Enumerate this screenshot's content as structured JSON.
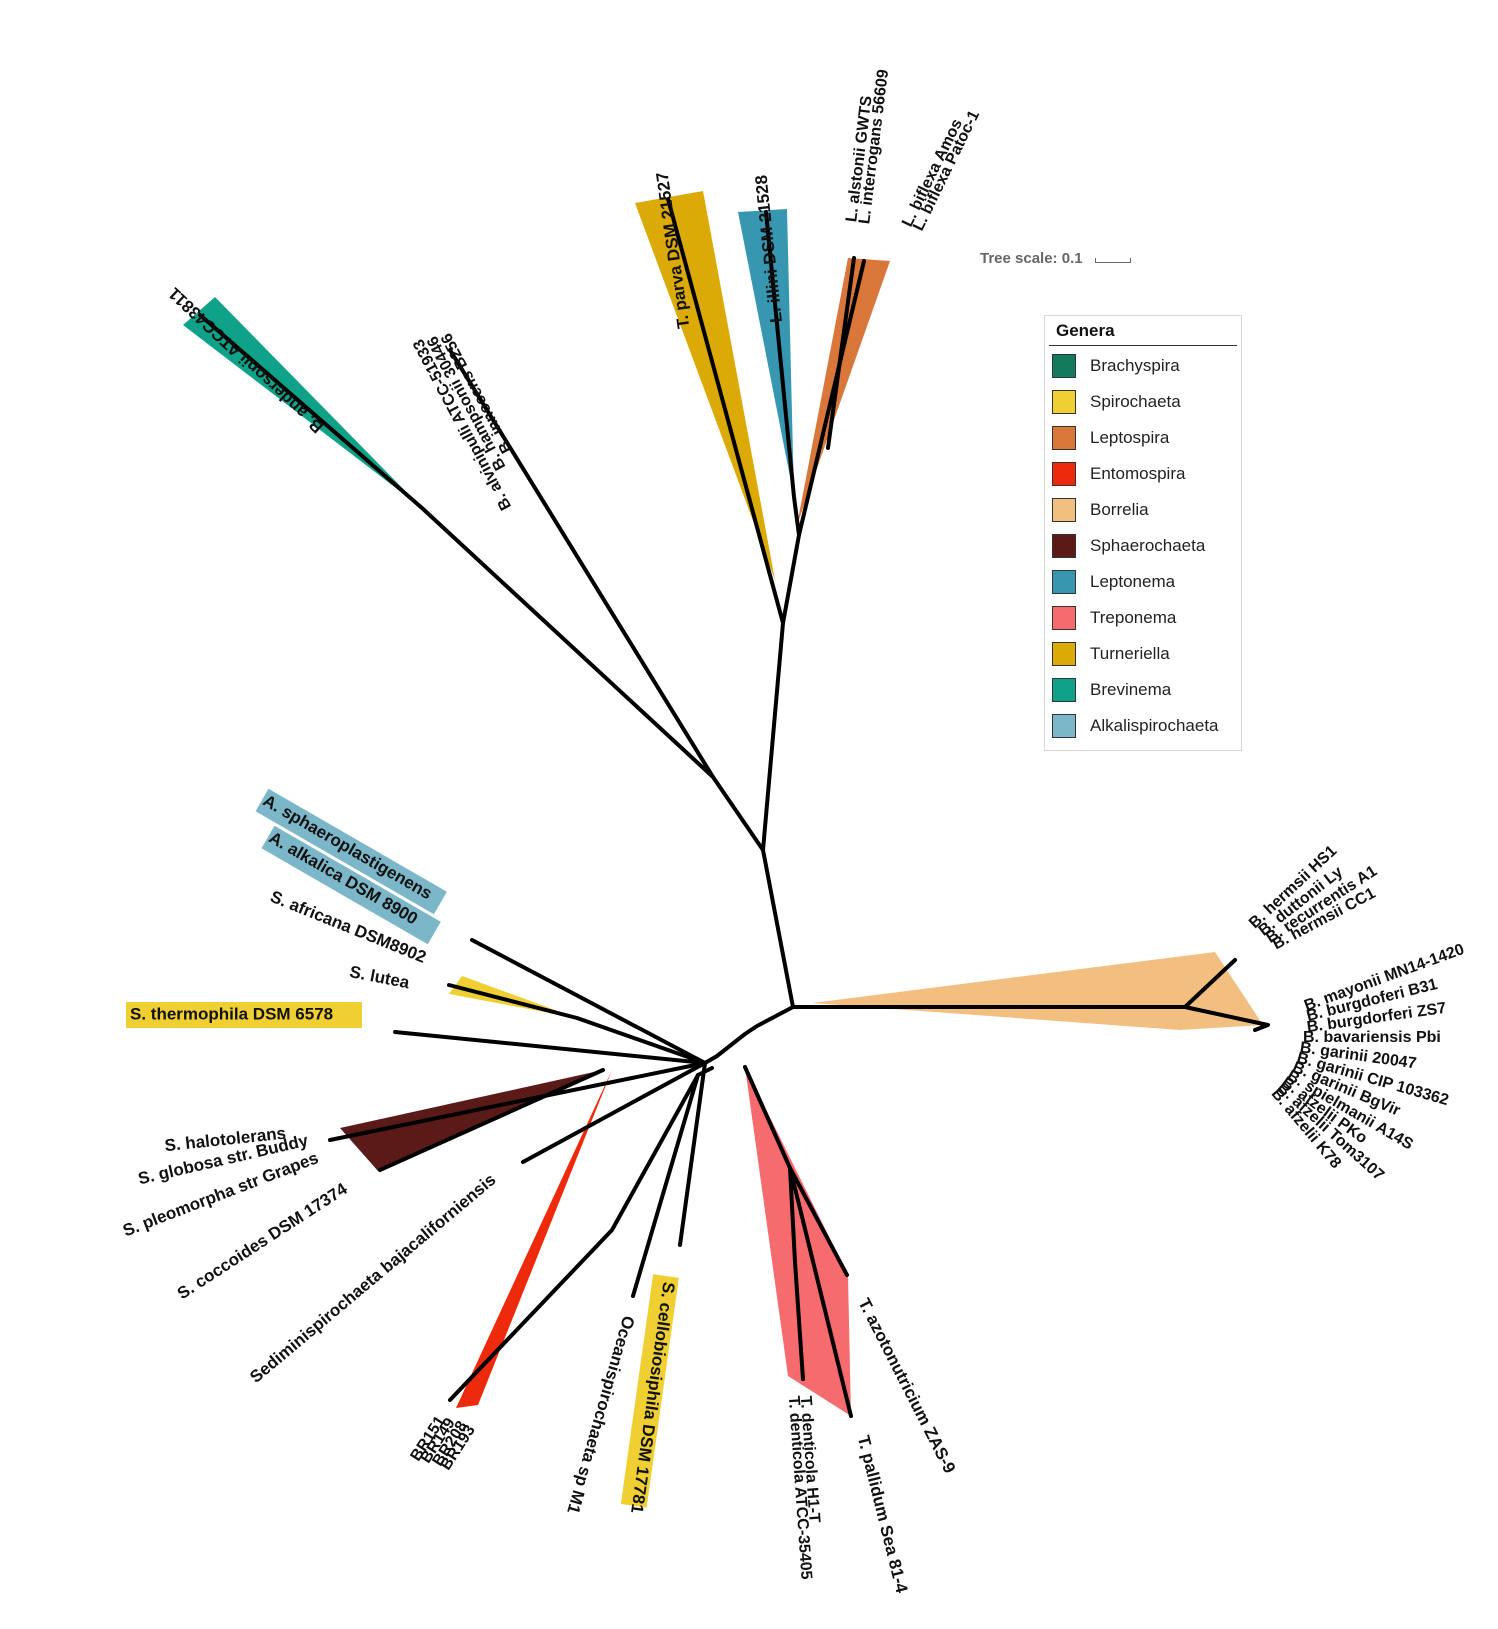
{
  "tree_scale": {
    "label": "Tree scale: 0.1"
  },
  "legend": {
    "title": "Genera",
    "items": [
      {
        "label": "Brachyspira",
        "color": "#137a5e"
      },
      {
        "label": "Spirochaeta",
        "color": "#f0cf33"
      },
      {
        "label": "Leptospira",
        "color": "#d9763a"
      },
      {
        "label": "Entomospira",
        "color": "#ee2a0d"
      },
      {
        "label": "Borrelia",
        "color": "#f2bf80"
      },
      {
        "label": "Sphaerochaeta",
        "color": "#5a1a18"
      },
      {
        "label": "Leptonema",
        "color": "#3797b0"
      },
      {
        "label": "Treponema",
        "color": "#f56b6e"
      },
      {
        "label": "Turneriella",
        "color": "#dcaa06"
      },
      {
        "label": "Brevinema",
        "color": "#0fa288"
      },
      {
        "label": "Alkalispirochaeta",
        "color": "#7cb7c9"
      }
    ]
  },
  "taxa": {
    "b_andersonii": "B. andersonii ATCC43811",
    "b_innocens": "B. innocens B256",
    "b_hampsonii": "B. hampsonii 30446",
    "b_alvinipulli": "B. alvinipulli ATCC-51933",
    "t_parva": "T. parva DSM 21527",
    "l_illini": "L. illini DSM 21528",
    "l_alstonii": "L. alstonii GWTS",
    "l_interrogans": "L. interrogans 56609",
    "l_biflexa_amos": "L. biflexa Amos",
    "l_biflexa_patoc": "L. biflexa Patoc-1",
    "b_hermsii_hs1": "B. hermsii HS1",
    "b_duttonii": "B. duttonii Ly",
    "b_recurrentis": "B. recurrentis A1",
    "b_hermsii_cc1": "B. hermsii CC1",
    "b_mayonii": "B. mayonii MN14-1420",
    "b_burgdorferi_b31": "B. burgdoferi B31",
    "b_burgdorferi_zs7": "B. burgdorferi ZS7",
    "b_bavariensis": "B. bavariensis Pbi",
    "b_garinii_20047": "B. garinii 20047",
    "b_garinii_cip": "B. garinii CIP 103362",
    "b_garinii_bgvir": "B. garinii BgVir",
    "b_spielmanii": "B. spielmanii A14S",
    "b_afzelii_pko": "B. afzelii PKo",
    "b_afzelii_tom": "B. afzelii Tom3107",
    "b_afzelii_k78": "B. afzelii K78",
    "t_azotonutricium": "T. azotonutricium ZAS-9",
    "t_pallidum": "T. pallidum Sea 81-4",
    "t_denticola_h1t": "T. denticola H1-T",
    "t_denticola_atcc": "T. denticola ATCC-35405",
    "s_cellobiosiphila": "S. cellobiosiphila DSM 17781",
    "oceanispirochaeta": "Oceanispirochaeta sp M1",
    "br151": "BR151",
    "br149": "BR149",
    "br208": "BR208",
    "br193": "BR193",
    "sediminispirochaeta": "Sediminispirochaeta bajacaliforniensis",
    "s_coccoides": "S. coccoides DSM 17374",
    "s_pleomorpha": "S. pleomorpha str Grapes",
    "s_globosa": "S. globosa str. Buddy",
    "s_halotolerans": "S. halotolerans",
    "s_thermophila": "S. thermophila DSM 6578",
    "s_lutea": "S. lutea",
    "s_africana": "S. africana DSM8902",
    "a_alkalica": "A. alkalica DSM 8900",
    "a_sphaeroplastigenens": "A. sphaeroplastigenens"
  }
}
